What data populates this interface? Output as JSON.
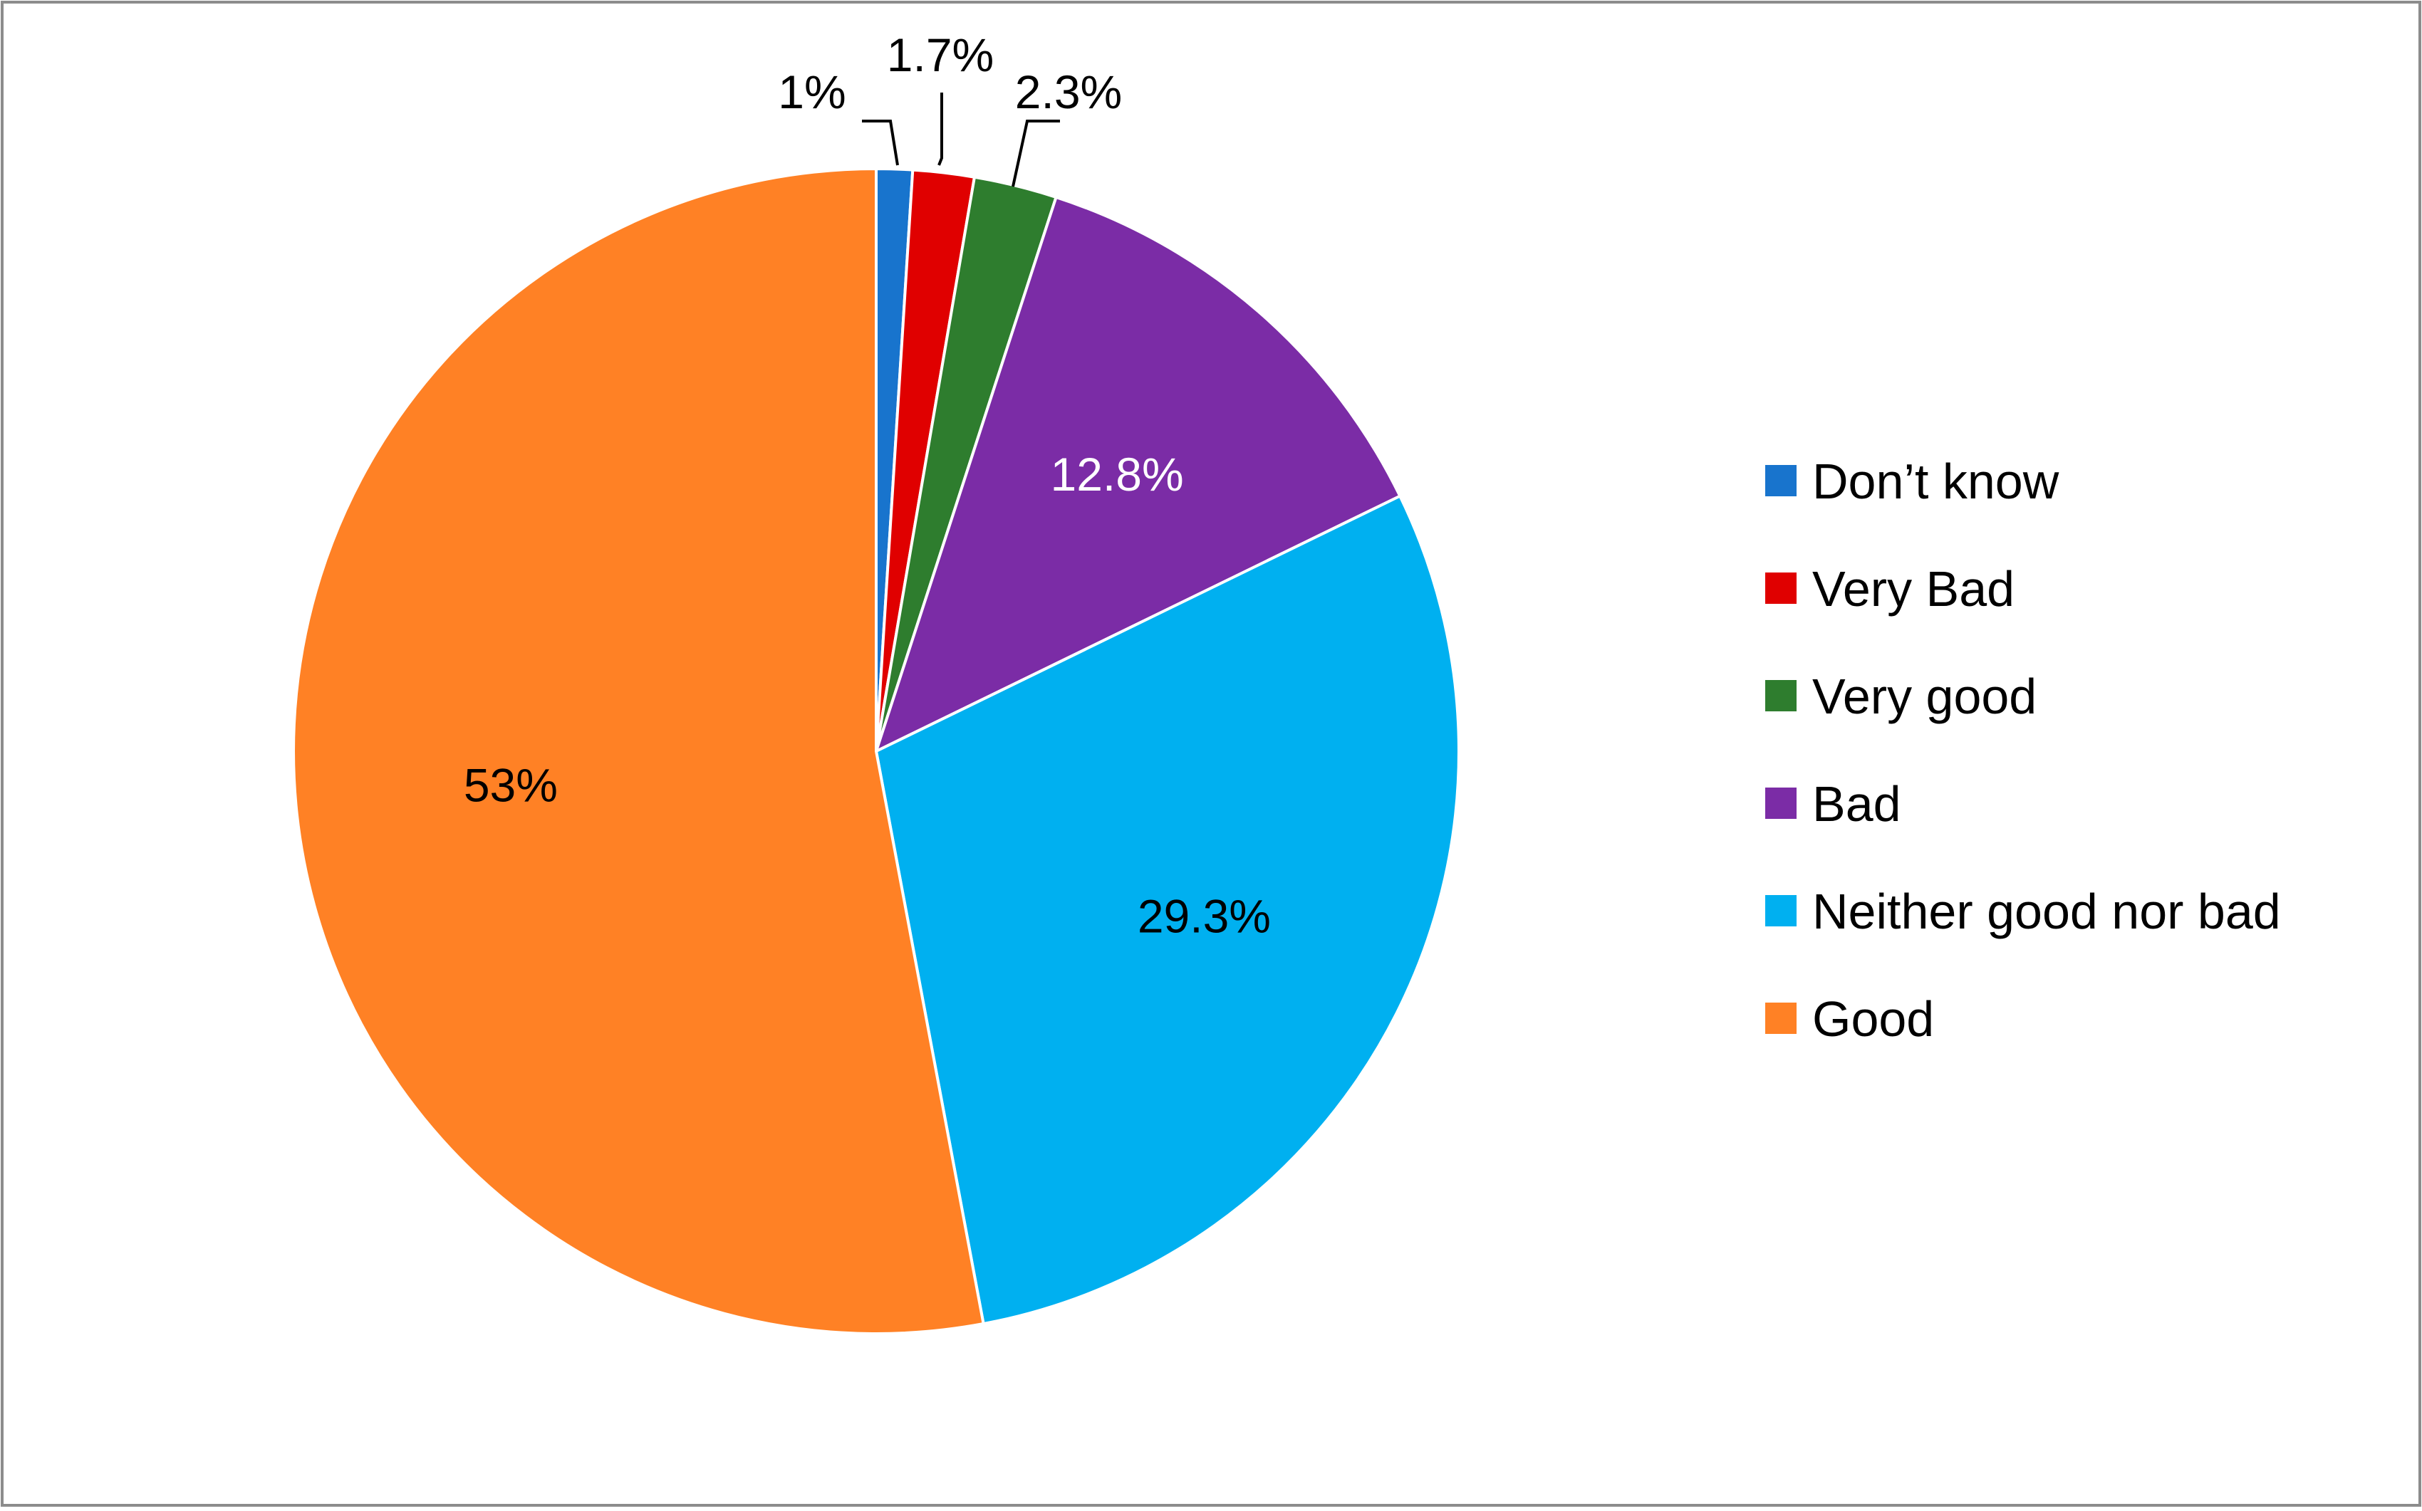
{
  "chart_data": {
    "type": "pie",
    "title": "",
    "legend_position": "right",
    "start_angle_deg": 0,
    "direction": "clockwise",
    "slices": [
      {
        "name": "Don’t know",
        "value": 1.0,
        "label": "1%",
        "color": "#1874CD",
        "label_color": "#000000",
        "label_placement": "outside"
      },
      {
        "name": "Very Bad",
        "value": 1.7,
        "label": "1.7%",
        "color": "#E00000",
        "label_color": "#000000",
        "label_placement": "outside"
      },
      {
        "name": "Very good",
        "value": 2.3,
        "label": "2.3%",
        "color": "#2E7D2E",
        "label_color": "#000000",
        "label_placement": "outside"
      },
      {
        "name": "Bad",
        "value": 12.8,
        "label": "12.8%",
        "color": "#7B2CA6",
        "label_color": "#FFFFFF",
        "label_placement": "inside"
      },
      {
        "name": "Neither good nor bad",
        "value": 29.3,
        "label": "29.3%",
        "color": "#00B0F0",
        "label_color": "#000000",
        "label_placement": "inside"
      },
      {
        "name": "Good",
        "value": 53.0,
        "label": "53%",
        "color": "#FF8125",
        "label_color": "#000000",
        "label_placement": "inside"
      }
    ]
  }
}
